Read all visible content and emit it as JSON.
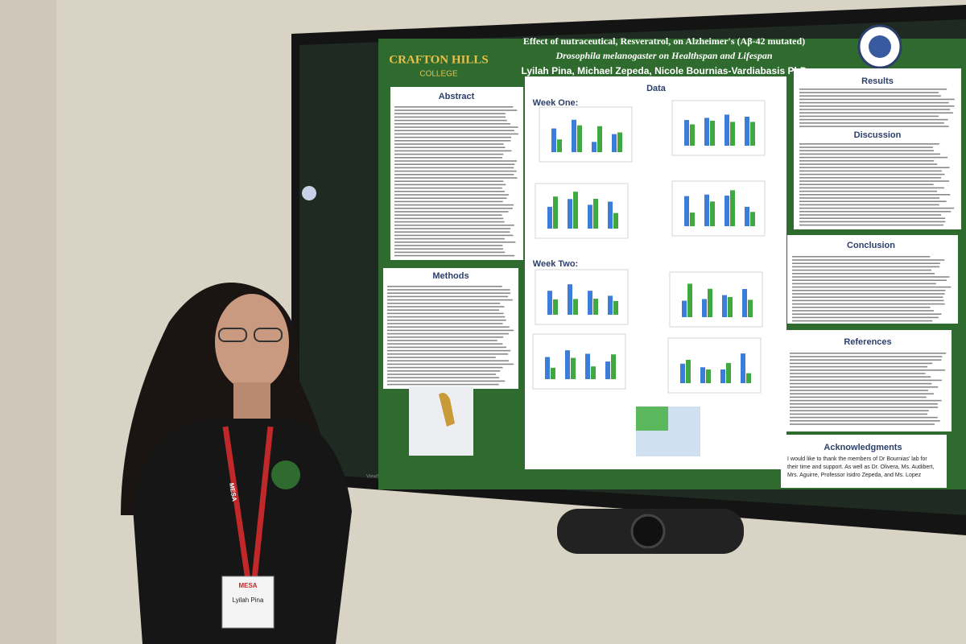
{
  "poster": {
    "college": "CRAFTON HILLS",
    "college_sub": "COLLEGE",
    "title_line1": "Effect of nutraceutical, Resveratrol, on Alzheimer's (Aβ-42 mutated)",
    "title_line2": "Drosophila melanogaster on Healthspan and Lifespan",
    "authors": "Lyilah Pina, Michael Zepeda, Nicole Bournias-Vardiabasis PhD",
    "sections": {
      "abstract": "Abstract",
      "methods": "Methods",
      "data": "Data",
      "week_one": "Week One:",
      "week_two": "Week Two:",
      "results": "Results",
      "discussion": "Discussion",
      "conclusion": "Conclusion",
      "references": "References",
      "acknowledgments": "Acknowledgments"
    },
    "acknowledgments_text": [
      "I would like to thank the members of Dr Bournias' lab for",
      "their time and support. As well as Dr. Olivera, Ms. Audibert,",
      "Mrs. Aguirre, Professor Isidro Zepeda, and Ms. Lopez"
    ]
  },
  "badge": {
    "org": "MESA",
    "name": "Lyilah Pina"
  },
  "monitor_brand": "ViewSonic"
}
